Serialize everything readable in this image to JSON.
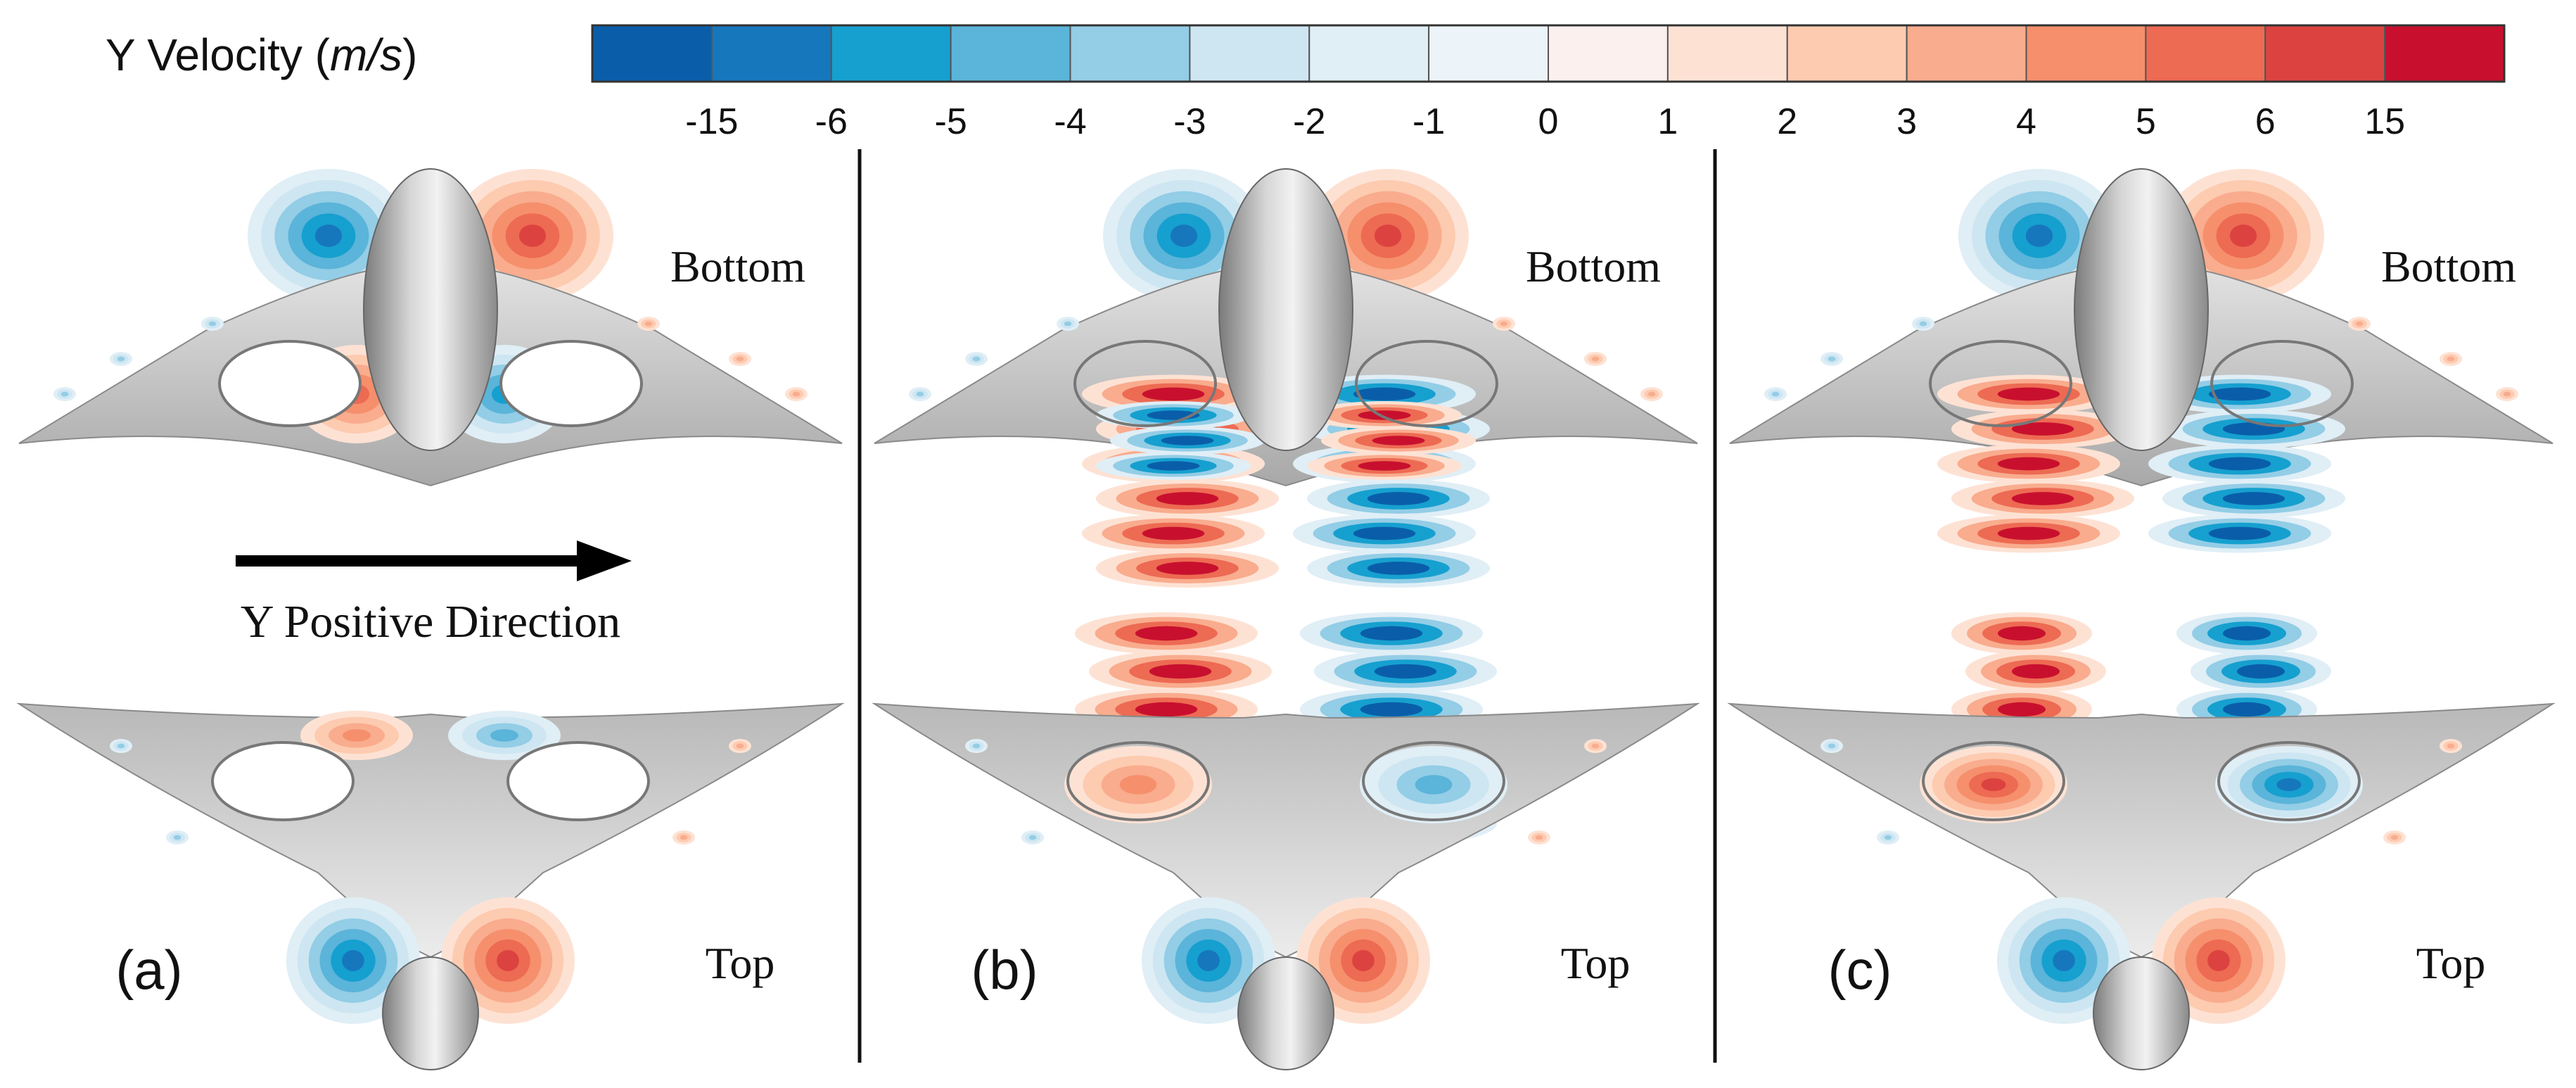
{
  "legend": {
    "title_main": "Y Velocity (",
    "title_unit": "m/s",
    "title_close": ")",
    "colors": [
      "#0a5ea9",
      "#1777bd",
      "#16a0cf",
      "#5bb4d9",
      "#93cde6",
      "#cde6f2",
      "#e0eef6",
      "#edf4f9",
      "#fbf0ee",
      "#fde2d4",
      "#fdcbb0",
      "#f9ac8e",
      "#f58f6c",
      "#ed6a53",
      "#dc4340",
      "#c8102e"
    ],
    "ticks": [
      "-15",
      "-6",
      "-5",
      "-4",
      "-3",
      "-2",
      "-1",
      "0",
      "1",
      "2",
      "3",
      "4",
      "5",
      "6",
      "15"
    ]
  },
  "panels": [
    {
      "label": "(a)",
      "bottom_text": "Bottom",
      "top_text": "Top",
      "intensity": 0.55,
      "rotor": false
    },
    {
      "label": "(b)",
      "bottom_text": "Bottom",
      "top_text": "Top",
      "intensity": 1.0,
      "rotor": true
    },
    {
      "label": "(c)",
      "bottom_text": "Bottom",
      "top_text": "Top",
      "intensity": 0.8,
      "rotor": true
    }
  ],
  "direction_label": "Y Positive Direction"
}
